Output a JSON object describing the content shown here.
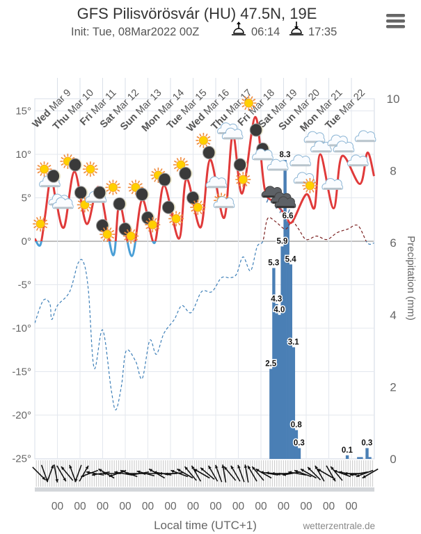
{
  "header": {
    "title": "GFS Pilisvörösvár (HU) 47.5N, 19E",
    "init": "Init: Tue, 08Mar2022 00Z",
    "sunrise": "06:14",
    "sunset": "17:35",
    "menu_icon": "hamburger-menu-icon"
  },
  "footer": {
    "xlabel": "Local time (UTC+1)",
    "credit": "wetterzentrale.de"
  },
  "chart_data": {
    "type": "line",
    "start": "2022-03-08T00:00",
    "days": [
      {
        "dow": "Wed",
        "date": "Mar 9"
      },
      {
        "dow": "Thu",
        "date": "Mar 10"
      },
      {
        "dow": "Fri",
        "date": "Mar 11"
      },
      {
        "dow": "Sat",
        "date": "Mar 12"
      },
      {
        "dow": "Sun",
        "date": "Mar 13"
      },
      {
        "dow": "Mon",
        "date": "Mar 14"
      },
      {
        "dow": "Tue",
        "date": "Mar 15"
      },
      {
        "dow": "Wed",
        "date": "Mar 16"
      },
      {
        "dow": "Thu",
        "date": "Mar 17"
      },
      {
        "dow": "Fri",
        "date": "Mar 18"
      },
      {
        "dow": "Sat",
        "date": "Mar 19"
      },
      {
        "dow": "Sun",
        "date": "Mar 20"
      },
      {
        "dow": "Mon",
        "date": "Mar 21"
      },
      {
        "dow": "Tue",
        "date": "Mar 22"
      }
    ],
    "x_tick_label": "00",
    "y_left": {
      "ticks": [
        "15°",
        "10°",
        "5°",
        "0°",
        "-5°",
        "-10°",
        "-15°",
        "-20°",
        "-25°"
      ],
      "values": [
        15,
        10,
        5,
        0,
        -5,
        -10,
        -15,
        -20,
        -25
      ],
      "ylim": [
        -25,
        15
      ]
    },
    "y_right": {
      "label": "Precipitation (mm)",
      "ticks": [
        "10",
        "8",
        "6",
        "4",
        "2",
        "0"
      ],
      "values": [
        10,
        8,
        6,
        4,
        2,
        0
      ],
      "ylim": [
        0,
        10
      ]
    },
    "grid": true,
    "colors": {
      "temp_above": "#e03a3a",
      "temp_below": "#4a9fd6",
      "dash_above": "#7a1f1f",
      "dash_below": "#3d7fb8",
      "precip": "#4a7fb5"
    },
    "temperature_series": [
      [
        "2022-03-08T00:00",
        0.3
      ],
      [
        "2022-03-08T06:00",
        -0.4
      ],
      [
        "2022-03-08T11:00",
        3
      ],
      [
        "2022-03-08T17:00",
        7.5
      ],
      [
        "2022-03-08T22:00",
        5
      ],
      [
        "2022-03-09T07:00",
        1.6
      ],
      [
        "2022-03-09T18:00",
        8
      ],
      [
        "2022-03-10T07:00",
        2
      ],
      [
        "2022-03-10T20:00",
        6.2
      ],
      [
        "2022-03-11T11:00",
        -1.6
      ],
      [
        "2022-03-11T18:00",
        4.3
      ],
      [
        "2022-03-12T07:00",
        -1.7
      ],
      [
        "2022-03-12T18:00",
        4.8
      ],
      [
        "2022-03-13T07:00",
        -0.2
      ],
      [
        "2022-03-13T17:00",
        6.4
      ],
      [
        "2022-03-14T09:00",
        0.3
      ],
      [
        "2022-03-14T17:00",
        7.2
      ],
      [
        "2022-03-15T08:00",
        1.6
      ],
      [
        "2022-03-15T18:00",
        9.4
      ],
      [
        "2022-03-16T09:00",
        2.7
      ],
      [
        "2022-03-16T18:00",
        12.3
      ],
      [
        "2022-03-17T04:00",
        5.5
      ],
      [
        "2022-03-17T18:00",
        14.3
      ],
      [
        "2022-03-18T04:00",
        6
      ],
      [
        "2022-03-18T15:00",
        4.5
      ],
      [
        "2022-03-19T02:00",
        3
      ],
      [
        "2022-03-19T09:00",
        2.2
      ],
      [
        "2022-03-20T00:00",
        5.4
      ],
      [
        "2022-03-20T09:00",
        3.9
      ],
      [
        "2022-03-20T15:00",
        10
      ],
      [
        "2022-03-21T05:00",
        3.8
      ],
      [
        "2022-03-21T14:00",
        9.8
      ],
      [
        "2022-03-22T09:00",
        6.6
      ],
      [
        "2022-03-22T17:00",
        10.2
      ],
      [
        "2022-03-23T00:00",
        7.5
      ]
    ],
    "dashed_series": [
      [
        "2022-03-08T00:00",
        -9.4
      ],
      [
        "2022-03-08T09:00",
        -6.8
      ],
      [
        "2022-03-08T16:00",
        -7.2
      ],
      [
        "2022-03-08T18:00",
        -9
      ],
      [
        "2022-03-09T00:00",
        -7.4
      ],
      [
        "2022-03-09T13:00",
        -5.8
      ],
      [
        "2022-03-09T22:00",
        -2.5
      ],
      [
        "2022-03-10T04:00",
        -2.5
      ],
      [
        "2022-03-10T09:00",
        -5.8
      ],
      [
        "2022-03-10T15:00",
        -14.6
      ],
      [
        "2022-03-11T00:00",
        -10.2
      ],
      [
        "2022-03-11T09:00",
        -17
      ],
      [
        "2022-03-11T14:00",
        -19.4
      ],
      [
        "2022-03-11T20:00",
        -16.6
      ],
      [
        "2022-03-12T01:00",
        -12.6
      ],
      [
        "2022-03-12T11:00",
        -13.8
      ],
      [
        "2022-03-12T18:00",
        -15.8
      ],
      [
        "2022-03-13T02:00",
        -11.4
      ],
      [
        "2022-03-13T09:00",
        -13
      ],
      [
        "2022-03-13T17:00",
        -10.6
      ],
      [
        "2022-03-14T04:00",
        -9
      ],
      [
        "2022-03-14T12:00",
        -7.4
      ],
      [
        "2022-03-14T22:00",
        -8.2
      ],
      [
        "2022-03-15T09:00",
        -5.8
      ],
      [
        "2022-03-15T20:00",
        -5.8
      ],
      [
        "2022-03-16T06:00",
        -4.2
      ],
      [
        "2022-03-16T15:00",
        -4.2
      ],
      [
        "2022-03-16T22:00",
        -3.8
      ],
      [
        "2022-03-17T05:00",
        -1.8
      ],
      [
        "2022-03-17T13:00",
        -3.4
      ],
      [
        "2022-03-17T20:00",
        -0.6
      ],
      [
        "2022-03-18T02:00",
        0
      ],
      [
        "2022-03-18T07:00",
        2.6
      ],
      [
        "2022-03-18T15:00",
        2.3
      ],
      [
        "2022-03-19T02:00",
        1.4
      ],
      [
        "2022-03-19T09:00",
        2.3
      ],
      [
        "2022-03-19T16:00",
        1.4
      ],
      [
        "2022-03-20T00:00",
        0.2
      ],
      [
        "2022-03-20T11:00",
        0.6
      ],
      [
        "2022-03-20T22:00",
        0.2
      ],
      [
        "2022-03-21T09:00",
        1
      ],
      [
        "2022-03-21T20:00",
        1.4
      ],
      [
        "2022-03-22T07:00",
        1.8
      ],
      [
        "2022-03-22T17:00",
        -0.2
      ],
      [
        "2022-03-23T00:00",
        -0.2
      ]
    ],
    "precipitation_bars": [
      {
        "t": "2022-03-18T09:00",
        "v": 2.5,
        "label": "2.5"
      },
      {
        "t": "2022-03-18T12:00",
        "v": 5.3,
        "label": "5.3"
      },
      {
        "t": "2022-03-18T15:00",
        "v": 4.3,
        "label": "4.3"
      },
      {
        "t": "2022-03-18T18:00",
        "v": 4.0,
        "label": "4.0"
      },
      {
        "t": "2022-03-18T21:00",
        "v": 5.9,
        "label": "5.9"
      },
      {
        "t": "2022-03-19T00:00",
        "v": 8.3,
        "label": "8.3"
      },
      {
        "t": "2022-03-19T03:00",
        "v": 6.6,
        "label": "6.6"
      },
      {
        "t": "2022-03-19T06:00",
        "v": 5.4,
        "label": "5.4"
      },
      {
        "t": "2022-03-19T09:00",
        "v": 3.1,
        "label": "3.1"
      },
      {
        "t": "2022-03-19T12:00",
        "v": 0.8,
        "label": "0.8"
      },
      {
        "t": "2022-03-19T15:00",
        "v": 0.3,
        "label": "0.3"
      },
      {
        "t": "2022-03-21T18:00",
        "v": 0.1,
        "label": "0.1"
      },
      {
        "t": "2022-03-22T06:00",
        "v": 0.05,
        "label": ""
      },
      {
        "t": "2022-03-22T09:00",
        "v": 0.05,
        "label": ""
      },
      {
        "t": "2022-03-22T15:00",
        "v": 0.3,
        "label": "0.3"
      },
      {
        "t": "2022-03-22T18:00",
        "v": 0.05,
        "label": ""
      }
    ],
    "weather_icons": [
      [
        "2022-03-08T06:00",
        2,
        "sun"
      ],
      [
        "2022-03-08T10:00",
        8.3,
        "sun"
      ],
      [
        "2022-03-08T16:00",
        6.7,
        "cloud"
      ],
      [
        "2022-03-08T20:00",
        7.5,
        "moon"
      ],
      [
        "2022-03-09T02:00",
        4.6,
        "cloud"
      ],
      [
        "2022-03-09T06:00",
        4.2,
        "cloud"
      ],
      [
        "2022-03-09T11:00",
        9.2,
        "sun"
      ],
      [
        "2022-03-09T19:00",
        8.8,
        "moon"
      ],
      [
        "2022-03-10T01:00",
        5.6,
        "moon"
      ],
      [
        "2022-03-10T05:00",
        4.2,
        "sun"
      ],
      [
        "2022-03-10T11:00",
        8.3,
        "sun"
      ],
      [
        "2022-03-10T17:00",
        4.9,
        "cloud"
      ],
      [
        "2022-03-10T21:00",
        5.6,
        "moon"
      ],
      [
        "2022-03-11T00:00",
        1.8,
        "moon"
      ],
      [
        "2022-03-11T05:00",
        0.8,
        "sun"
      ],
      [
        "2022-03-11T11:00",
        6.2,
        "sun"
      ],
      [
        "2022-03-11T18:00",
        4.3,
        "moon"
      ],
      [
        "2022-03-12T00:00",
        1.4,
        "moon"
      ],
      [
        "2022-03-12T06:00",
        0.6,
        "sun"
      ],
      [
        "2022-03-12T11:00",
        6.2,
        "sun"
      ],
      [
        "2022-03-12T18:00",
        5.4,
        "moon"
      ],
      [
        "2022-03-13T00:00",
        2.7,
        "moon"
      ],
      [
        "2022-03-13T05:00",
        1.9,
        "sun"
      ],
      [
        "2022-03-13T11:00",
        7.6,
        "sun"
      ],
      [
        "2022-03-13T18:00",
        7.1,
        "moon"
      ],
      [
        "2022-03-13T22:00",
        3.9,
        "moon"
      ],
      [
        "2022-03-14T06:00",
        2.6,
        "sun"
      ],
      [
        "2022-03-14T11:00",
        8.8,
        "sun"
      ],
      [
        "2022-03-14T16:00",
        7.8,
        "moon"
      ],
      [
        "2022-03-15T00:00",
        5,
        "moon"
      ],
      [
        "2022-03-15T05:00",
        3.9,
        "sun"
      ],
      [
        "2022-03-15T11:00",
        11.6,
        "sun"
      ],
      [
        "2022-03-15T17:00",
        10.2,
        "moon"
      ],
      [
        "2022-03-16T01:00",
        6.6,
        "cloud"
      ],
      [
        "2022-03-16T06:00",
        4.7,
        "sun"
      ],
      [
        "2022-03-16T09:00",
        4.3,
        "cloud"
      ],
      [
        "2022-03-16T13:00",
        12.8,
        "cloud"
      ],
      [
        "2022-03-16T18:00",
        12.2,
        "cloud"
      ],
      [
        "2022-03-17T02:00",
        8.8,
        "moon"
      ],
      [
        "2022-03-17T05:00",
        7.1,
        "sun"
      ],
      [
        "2022-03-17T11:00",
        15.9,
        "sun"
      ],
      [
        "2022-03-17T19:00",
        12.8,
        "moon"
      ],
      [
        "2022-03-18T02:00",
        10.6,
        "moon"
      ],
      [
        "2022-03-18T02:00",
        9.8,
        "cloud"
      ],
      [
        "2022-03-18T12:00",
        5.5,
        "rain"
      ],
      [
        "2022-03-18T18:00",
        8.6,
        "cloud"
      ],
      [
        "2022-03-18T22:00",
        4.8,
        "rain"
      ],
      [
        "2022-03-19T02:00",
        4.3,
        "rain"
      ],
      [
        "2022-03-19T18:00",
        9.1,
        "cloud"
      ],
      [
        "2022-03-19T22:00",
        7.1,
        "cloud"
      ],
      [
        "2022-03-20T04:00",
        6.4,
        "sun"
      ],
      [
        "2022-03-20T09:00",
        11.8,
        "cloud"
      ],
      [
        "2022-03-20T16:00",
        10.7,
        "cloud"
      ],
      [
        "2022-03-21T04:00",
        6.4,
        "cloud"
      ],
      [
        "2022-03-21T10:00",
        11.4,
        "cloud"
      ],
      [
        "2022-03-21T16:00",
        10.7,
        "cloud"
      ],
      [
        "2022-03-22T07:00",
        9.1,
        "cloud"
      ],
      [
        "2022-03-22T15:00",
        11.9,
        "cloud"
      ]
    ],
    "wind_direction_deg": [
      135,
      160,
      20,
      170,
      150,
      320,
      340,
      200,
      30,
      250,
      280,
      260,
      300,
      270,
      250,
      280,
      290,
      270,
      260,
      285,
      270,
      300,
      280,
      270,
      265,
      290,
      300,
      320,
      330,
      300,
      310,
      330,
      340,
      350,
      320,
      330,
      340,
      350,
      330,
      320,
      300,
      280,
      275,
      270,
      265,
      260,
      280,
      290,
      300,
      315,
      330,
      300,
      150,
      320,
      290,
      280,
      270,
      260,
      250,
      240
    ]
  }
}
